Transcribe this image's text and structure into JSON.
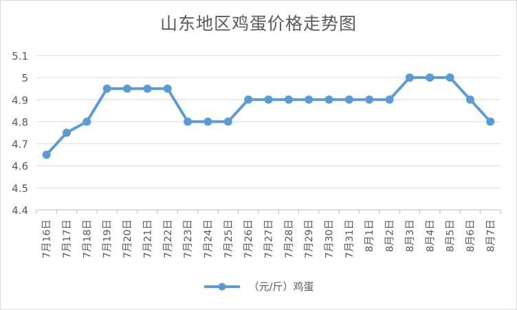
{
  "chart_data": {
    "type": "line",
    "title": "山东地区鸡蛋价格走势图",
    "xlabel": "",
    "ylabel": "",
    "categories": [
      "7月16日",
      "7月17日",
      "7月18日",
      "7月19日",
      "7月20日",
      "7月21日",
      "7月22日",
      "7月23日",
      "7月24日",
      "7月25日",
      "7月26日",
      "7月27日",
      "7月28日",
      "7月29日",
      "7月30日",
      "7月31日",
      "8月1日",
      "8月2日",
      "8月3日",
      "8月4日",
      "8月5日",
      "8月6日",
      "8月7日"
    ],
    "series": [
      {
        "name": "（元/斤）鸡蛋",
        "color": "#5b9bd5",
        "values": [
          4.65,
          4.75,
          4.8,
          4.95,
          4.95,
          4.95,
          4.95,
          4.8,
          4.8,
          4.8,
          4.9,
          4.9,
          4.9,
          4.9,
          4.9,
          4.9,
          4.9,
          4.9,
          5.0,
          5.0,
          5.0,
          4.9,
          4.8
        ]
      }
    ],
    "ylim": [
      4.4,
      5.1
    ],
    "yticks": [
      "4.4",
      "4.5",
      "4.6",
      "4.7",
      "4.8",
      "4.9",
      "5",
      "5.1"
    ],
    "grid": true,
    "legend_position": "bottom"
  }
}
